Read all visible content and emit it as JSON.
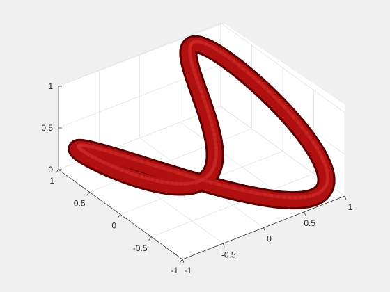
{
  "chart_data": {
    "type": "surface3d",
    "description_shape": "tube",
    "title": "",
    "xlabel": "",
    "ylabel": "",
    "zlabel": "",
    "xlim": [
      -1,
      1
    ],
    "ylim": [
      -1,
      1
    ],
    "zlim": [
      0,
      1
    ],
    "x_ticks": [
      "-1",
      "-0.5",
      "0",
      "0.5",
      "1"
    ],
    "y_ticks": [
      "-1",
      "-0.5",
      "0",
      "0.5",
      "1"
    ],
    "z_ticks": [
      "0",
      "0.5",
      "1"
    ],
    "grid": true,
    "colors": {
      "surface": "#b01010",
      "surface_dark": "#5a0000",
      "background": "#f0f0f0",
      "axes": "#ffffff"
    },
    "curve": {
      "x": "cos(t)",
      "y": "sin(2t)",
      "z": "(1 + sin(t)) / 2",
      "t_range": [
        0,
        6.2832
      ]
    }
  }
}
